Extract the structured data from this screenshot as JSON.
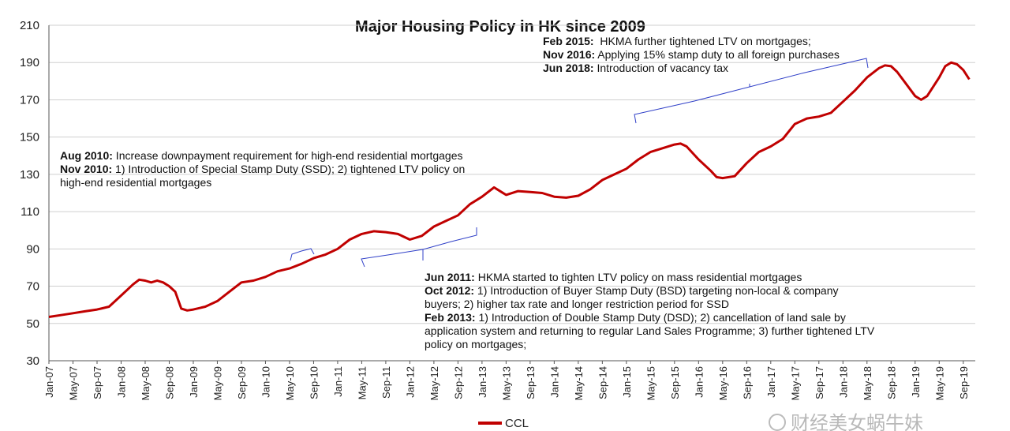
{
  "chart_data": {
    "type": "line",
    "title": "Major Housing Policy in HK since 2009",
    "xlabel": "",
    "ylabel": "",
    "ylim": [
      30,
      210
    ],
    "y_ticks": [
      30,
      50,
      70,
      90,
      110,
      130,
      150,
      170,
      190,
      210
    ],
    "x_tick_labels": [
      "Jan-07",
      "May-07",
      "Sep-07",
      "Jan-08",
      "May-08",
      "Sep-08",
      "Jan-09",
      "May-09",
      "Sep-09",
      "Jan-10",
      "May-10",
      "Sep-10",
      "Jan-11",
      "May-11",
      "Sep-11",
      "Jan-12",
      "May-12",
      "Sep-12",
      "Jan-13",
      "May-13",
      "Sep-13",
      "Jan-14",
      "May-14",
      "Sep-14",
      "Jan-15",
      "May-15",
      "Sep-15",
      "Jan-16",
      "May-16",
      "Sep-16",
      "Jan-17",
      "May-17",
      "Sep-17",
      "Jan-18",
      "May-18",
      "Sep-18",
      "Jan-19",
      "May-19",
      "Sep-19"
    ],
    "grid": true,
    "legend_position": "bottom",
    "series": [
      {
        "name": "CCL",
        "color": "#c00000",
        "points": [
          [
            "2007-01",
            53.5
          ],
          [
            "2007-03",
            54.5
          ],
          [
            "2007-05",
            55.5
          ],
          [
            "2007-07",
            56.5
          ],
          [
            "2007-09",
            57.5
          ],
          [
            "2007-11",
            59
          ],
          [
            "2008-01",
            65
          ],
          [
            "2008-02",
            68
          ],
          [
            "2008-03",
            71
          ],
          [
            "2008-04",
            73.5
          ],
          [
            "2008-05",
            73
          ],
          [
            "2008-06",
            72
          ],
          [
            "2008-07",
            73
          ],
          [
            "2008-08",
            72
          ],
          [
            "2008-09",
            70
          ],
          [
            "2008-10",
            67
          ],
          [
            "2008-11",
            58
          ],
          [
            "2008-12",
            57
          ],
          [
            "2009-01",
            57.5
          ],
          [
            "2009-03",
            59
          ],
          [
            "2009-05",
            62
          ],
          [
            "2009-07",
            67
          ],
          [
            "2009-09",
            72
          ],
          [
            "2009-11",
            73
          ],
          [
            "2010-01",
            75
          ],
          [
            "2010-03",
            78
          ],
          [
            "2010-05",
            79.5
          ],
          [
            "2010-07",
            82
          ],
          [
            "2010-09",
            85
          ],
          [
            "2010-11",
            87
          ],
          [
            "2011-01",
            90
          ],
          [
            "2011-03",
            95
          ],
          [
            "2011-05",
            98
          ],
          [
            "2011-07",
            99.5
          ],
          [
            "2011-09",
            99
          ],
          [
            "2011-11",
            98
          ],
          [
            "2012-01",
            95
          ],
          [
            "2012-03",
            97
          ],
          [
            "2012-05",
            102
          ],
          [
            "2012-07",
            105
          ],
          [
            "2012-09",
            108
          ],
          [
            "2012-11",
            114
          ],
          [
            "2013-01",
            118
          ],
          [
            "2013-03",
            123
          ],
          [
            "2013-05",
            119
          ],
          [
            "2013-07",
            121
          ],
          [
            "2013-09",
            120.5
          ],
          [
            "2013-11",
            120
          ],
          [
            "2014-01",
            118
          ],
          [
            "2014-03",
            117.5
          ],
          [
            "2014-05",
            118.5
          ],
          [
            "2014-07",
            122
          ],
          [
            "2014-09",
            127
          ],
          [
            "2014-11",
            130
          ],
          [
            "2015-01",
            133
          ],
          [
            "2015-03",
            138
          ],
          [
            "2015-05",
            142
          ],
          [
            "2015-07",
            144
          ],
          [
            "2015-09",
            146
          ],
          [
            "2015-10",
            146.5
          ],
          [
            "2015-11",
            145
          ],
          [
            "2016-01",
            138
          ],
          [
            "2016-03",
            132
          ],
          [
            "2016-04",
            128.5
          ],
          [
            "2016-05",
            128
          ],
          [
            "2016-07",
            129
          ],
          [
            "2016-09",
            136
          ],
          [
            "2016-11",
            142
          ],
          [
            "2017-01",
            145
          ],
          [
            "2017-03",
            149
          ],
          [
            "2017-05",
            157
          ],
          [
            "2017-07",
            160
          ],
          [
            "2017-09",
            161
          ],
          [
            "2017-11",
            163
          ],
          [
            "2018-01",
            169
          ],
          [
            "2018-03",
            175
          ],
          [
            "2018-05",
            182
          ],
          [
            "2018-07",
            187
          ],
          [
            "2018-08",
            188.5
          ],
          [
            "2018-09",
            188
          ],
          [
            "2018-10",
            185
          ],
          [
            "2019-01",
            172
          ],
          [
            "2019-02",
            170
          ],
          [
            "2019-03",
            172
          ],
          [
            "2019-05",
            182
          ],
          [
            "2019-06",
            188
          ],
          [
            "2019-07",
            190
          ],
          [
            "2019-08",
            189
          ],
          [
            "2019-09",
            186
          ],
          [
            "2019-10",
            181
          ]
        ]
      }
    ],
    "annotations": [
      {
        "lines": [
          [
            {
              "b": "Aug 2010:"
            },
            {
              "t": " Increase downpayment requirement for high-end residential mortgages"
            }
          ],
          [
            {
              "b": "Nov 2010:"
            },
            {
              "t": " 1) Introduction of Special Stamp Duty (SSD); 2) tightened LTV policy on"
            }
          ],
          [
            {
              "t": "high-end residential mortgages"
            }
          ]
        ]
      },
      {
        "lines": [
          [
            {
              "b": "Jun 2011:"
            },
            {
              "t": " HKMA started to tighten LTV policy on mass residential mortgages"
            }
          ],
          [
            {
              "b": "Oct 2012:"
            },
            {
              "t": " 1) Introduction of Buyer Stamp Duty (BSD) targeting non-local & company"
            }
          ],
          [
            {
              "t": "buyers; 2) higher tax rate and longer restriction period for SSD"
            }
          ],
          [
            {
              "b": "Feb 2013:"
            },
            {
              "t": " 1) Introduction of Double Stamp Duty (DSD); 2) cancellation of land sale by"
            }
          ],
          [
            {
              "t": "application system and returning to regular Land Sales Programme; 3) further tightened LTV"
            }
          ],
          [
            {
              "t": "policy on mortgages;"
            }
          ]
        ]
      },
      {
        "lines": [
          [
            {
              "b": "Feb 2015:"
            },
            {
              "t": "  HKMA further tightened LTV on mortgages;"
            }
          ],
          [
            {
              "b": "Nov 2016:"
            },
            {
              "t": " Applying 15% stamp duty to all foreign purchases"
            }
          ],
          [
            {
              "b": "Jun 2018:"
            },
            {
              "t": " Introduction of vacancy tax"
            }
          ]
        ]
      }
    ]
  },
  "watermark": "财经美女蜗牛妹"
}
